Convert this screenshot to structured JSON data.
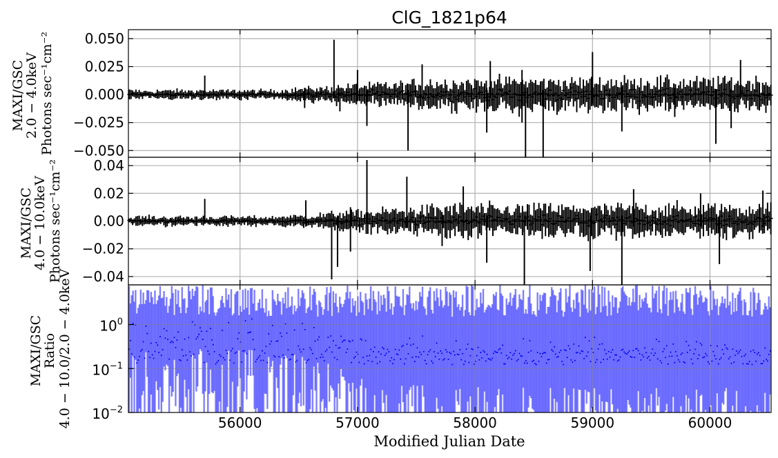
{
  "chart_data": [
    {
      "type": "line",
      "panel": "top",
      "title": "ClG_1821p64",
      "ylabel_lines": [
        "MAXI/GSC",
        "2.0 − 4.0keV",
        "Photons sec⁻¹cm⁻²"
      ],
      "xlim": [
        55050,
        60520
      ],
      "ylim": [
        -0.056,
        0.058
      ],
      "yticks": [
        {
          "v": 0.05,
          "label": "0.050"
        },
        {
          "v": 0.025,
          "label": "0.025"
        },
        {
          "v": 0.0,
          "label": "0.000"
        },
        {
          "v": -0.025,
          "label": "−0.025"
        },
        {
          "v": -0.05,
          "label": "−0.050"
        }
      ],
      "grid": true,
      "series": [
        {
          "color": "#000000",
          "spikes": [
            {
              "x": 55700,
              "hi": 0.017,
              "lo": -0.002
            },
            {
              "x": 56550,
              "hi": 0.006,
              "lo": -0.012
            },
            {
              "x": 56800,
              "hi": 0.049,
              "lo": -0.003
            },
            {
              "x": 56850,
              "hi": 0.006,
              "lo": -0.015
            },
            {
              "x": 57000,
              "hi": 0.022,
              "lo": -0.006
            },
            {
              "x": 57080,
              "hi": 0.004,
              "lo": -0.028
            },
            {
              "x": 57430,
              "hi": 0.004,
              "lo": -0.05
            },
            {
              "x": 57550,
              "hi": 0.027,
              "lo": -0.005
            },
            {
              "x": 58100,
              "hi": 0.006,
              "lo": -0.034
            },
            {
              "x": 58130,
              "hi": 0.03,
              "lo": -0.003
            },
            {
              "x": 58400,
              "hi": 0.022,
              "lo": -0.025
            },
            {
              "x": 58430,
              "hi": 0.006,
              "lo": -0.056
            },
            {
              "x": 58580,
              "hi": 0.004,
              "lo": -0.056
            },
            {
              "x": 59000,
              "hi": 0.038,
              "lo": -0.008
            },
            {
              "x": 59250,
              "hi": 0.007,
              "lo": -0.033
            },
            {
              "x": 59700,
              "hi": 0.006,
              "lo": -0.02
            },
            {
              "x": 60050,
              "hi": 0.005,
              "lo": -0.044
            },
            {
              "x": 60180,
              "hi": 0.005,
              "lo": -0.03
            },
            {
              "x": 60260,
              "hi": 0.031,
              "lo": -0.004
            }
          ]
        }
      ]
    },
    {
      "type": "line",
      "panel": "middle",
      "ylabel_lines": [
        "MAXI/GSC",
        "4.0 − 10.0keV",
        "Photons sec⁻¹cm⁻²"
      ],
      "xlim": [
        55050,
        60520
      ],
      "ylim": [
        -0.046,
        0.046
      ],
      "yticks": [
        {
          "v": 0.04,
          "label": "0.04"
        },
        {
          "v": 0.02,
          "label": "0.02"
        },
        {
          "v": 0.0,
          "label": "0.00"
        },
        {
          "v": -0.02,
          "label": "−0.02"
        },
        {
          "v": -0.04,
          "label": "−0.04"
        }
      ],
      "grid": true,
      "series": [
        {
          "color": "#000000",
          "spikes": [
            {
              "x": 55700,
              "hi": 0.016,
              "lo": -0.002
            },
            {
              "x": 56560,
              "hi": 0.015,
              "lo": -0.004
            },
            {
              "x": 56780,
              "hi": 0.004,
              "lo": -0.042
            },
            {
              "x": 56830,
              "hi": 0.004,
              "lo": -0.033
            },
            {
              "x": 56940,
              "hi": 0.01,
              "lo": -0.022
            },
            {
              "x": 57080,
              "hi": 0.044,
              "lo": -0.002
            },
            {
              "x": 57420,
              "hi": 0.032,
              "lo": -0.005
            },
            {
              "x": 57720,
              "hi": 0.005,
              "lo": -0.018
            },
            {
              "x": 57900,
              "hi": 0.025,
              "lo": -0.004
            },
            {
              "x": 58100,
              "hi": 0.004,
              "lo": -0.03
            },
            {
              "x": 58420,
              "hi": 0.004,
              "lo": -0.046
            },
            {
              "x": 58980,
              "hi": 0.004,
              "lo": -0.036
            },
            {
              "x": 59250,
              "hi": 0.004,
              "lo": -0.046
            },
            {
              "x": 59350,
              "hi": 0.023,
              "lo": -0.004
            },
            {
              "x": 59920,
              "hi": 0.02,
              "lo": -0.004
            },
            {
              "x": 60080,
              "hi": 0.004,
              "lo": -0.031
            },
            {
              "x": 60450,
              "hi": 0.022,
              "lo": -0.004
            }
          ]
        }
      ]
    },
    {
      "type": "line",
      "panel": "bottom",
      "ylabel_lines": [
        "MAXI/GSC",
        "Ratio",
        "4.0 − 10.0/2.0 − 4.0keV"
      ],
      "xlabel": "Modified Julian Date",
      "xlim": [
        55050,
        60520
      ],
      "xticks": [
        {
          "v": 56000,
          "label": "56000"
        },
        {
          "v": 57000,
          "label": "57000"
        },
        {
          "v": 58000,
          "label": "58000"
        },
        {
          "v": 59000,
          "label": "59000"
        },
        {
          "v": 60000,
          "label": "60000"
        }
      ],
      "yscale": "log",
      "ylim": [
        0.01,
        8
      ],
      "yticks": [
        {
          "v": 1,
          "base": "10",
          "exp": "0"
        },
        {
          "v": 0.1,
          "base": "10",
          "exp": "−1"
        },
        {
          "v": 0.01,
          "base": "10",
          "exp": "−2"
        }
      ],
      "grid": true,
      "series": [
        {
          "color": "#0000ff",
          "alpha": 0.5,
          "description_range": [
            0.01,
            8
          ]
        }
      ]
    }
  ]
}
